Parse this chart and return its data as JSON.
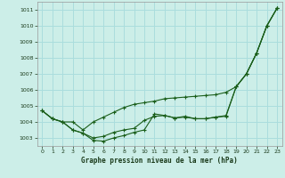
{
  "xlabel": "Graphe pression niveau de la mer (hPa)",
  "ylim": [
    1002.5,
    1011.5
  ],
  "xlim": [
    -0.5,
    23.5
  ],
  "yticks": [
    1003,
    1004,
    1005,
    1006,
    1007,
    1008,
    1009,
    1010,
    1011
  ],
  "xticks": [
    0,
    1,
    2,
    3,
    4,
    5,
    6,
    7,
    8,
    9,
    10,
    11,
    12,
    13,
    14,
    15,
    16,
    17,
    18,
    19,
    20,
    21,
    22,
    23
  ],
  "bg_color": "#cceee8",
  "grid_color": "#aadddd",
  "line_color": "#1a5e1a",
  "series1_y": [
    1004.7,
    1004.2,
    1004.0,
    1004.0,
    1003.5,
    1004.0,
    1004.3,
    1004.6,
    1004.9,
    1005.1,
    1005.2,
    1005.3,
    1005.45,
    1005.5,
    1005.55,
    1005.6,
    1005.65,
    1005.7,
    1005.85,
    1006.2,
    1007.0,
    1008.3,
    1010.0,
    1011.1
  ],
  "series2_y": [
    1004.7,
    1004.2,
    1004.0,
    1003.5,
    1003.3,
    1002.85,
    1002.8,
    1003.0,
    1003.15,
    1003.35,
    1003.5,
    1004.5,
    1004.4,
    1004.25,
    1004.3,
    1004.2,
    1004.2,
    1004.3,
    1004.35,
    1006.2,
    1007.0,
    1008.3,
    1010.0,
    1011.1
  ],
  "series3_y": [
    1004.7,
    1004.2,
    1004.0,
    1003.5,
    1003.3,
    1003.0,
    1003.1,
    1003.35,
    1003.5,
    1003.6,
    1004.1,
    1004.35,
    1004.4,
    1004.25,
    1004.35,
    1004.2,
    1004.2,
    1004.3,
    1004.4,
    1006.2,
    1007.0,
    1008.3,
    1010.0,
    1011.1
  ]
}
